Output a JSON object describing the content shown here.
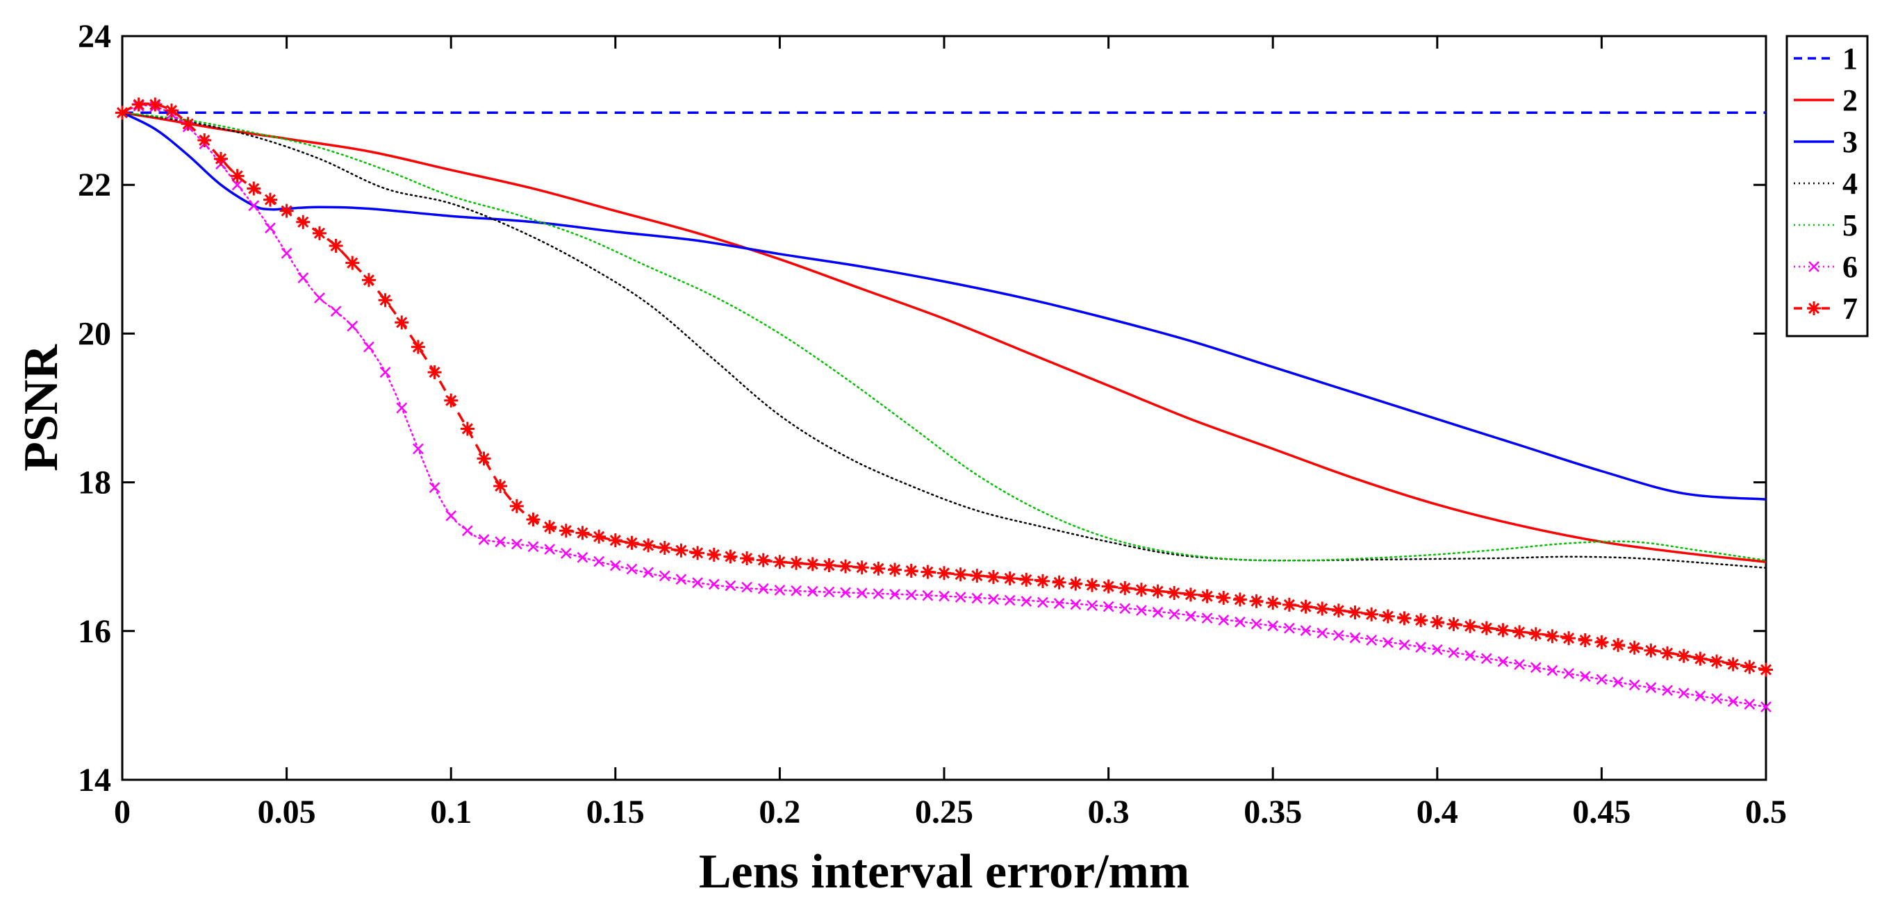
{
  "chart_data": {
    "type": "line",
    "title": "",
    "xlabel": "Lens interval error/mm",
    "ylabel": "PSNR",
    "xlim": [
      0,
      0.5
    ],
    "ylim": [
      14,
      24
    ],
    "xticks": [
      0,
      0.05,
      0.1,
      0.15,
      0.2,
      0.25,
      0.3,
      0.35,
      0.4,
      0.45,
      0.5
    ],
    "xtick_labels": [
      "0",
      "0.05",
      "0.1",
      "0.15",
      "0.2",
      "0.25",
      "0.3",
      "0.35",
      "0.4",
      "0.45",
      "0.5"
    ],
    "yticks": [
      14,
      16,
      18,
      20,
      22,
      24
    ],
    "ytick_labels": [
      "14",
      "16",
      "18",
      "20",
      "22",
      "24"
    ],
    "grid": false,
    "legend_position": "top-right (outside plot)",
    "series": [
      {
        "name": "1",
        "color": "#0000ff",
        "style": "dashed",
        "marker": "none",
        "x": [
          0,
          0.5
        ],
        "y": [
          22.97,
          22.97
        ]
      },
      {
        "name": "2",
        "color": "#ff0000",
        "style": "solid",
        "marker": "none",
        "x": [
          0,
          0.01,
          0.03,
          0.05,
          0.075,
          0.1,
          0.125,
          0.15,
          0.175,
          0.2,
          0.225,
          0.25,
          0.275,
          0.3,
          0.325,
          0.35,
          0.375,
          0.4,
          0.425,
          0.45,
          0.475,
          0.5
        ],
        "y": [
          22.97,
          22.9,
          22.75,
          22.62,
          22.45,
          22.2,
          21.95,
          21.65,
          21.35,
          21.0,
          20.6,
          20.2,
          19.75,
          19.3,
          18.85,
          18.45,
          18.05,
          17.7,
          17.42,
          17.2,
          17.05,
          16.93
        ]
      },
      {
        "name": "3",
        "color": "#0000ff",
        "style": "solid",
        "marker": "none",
        "x": [
          0,
          0.01,
          0.02,
          0.03,
          0.04,
          0.045,
          0.05,
          0.06,
          0.075,
          0.1,
          0.125,
          0.15,
          0.175,
          0.2,
          0.225,
          0.25,
          0.275,
          0.3,
          0.325,
          0.35,
          0.375,
          0.4,
          0.425,
          0.45,
          0.475,
          0.5
        ],
        "y": [
          22.97,
          22.75,
          22.4,
          22.0,
          21.72,
          21.67,
          21.68,
          21.7,
          21.68,
          21.58,
          21.5,
          21.37,
          21.25,
          21.07,
          20.9,
          20.7,
          20.47,
          20.2,
          19.9,
          19.55,
          19.2,
          18.85,
          18.5,
          18.15,
          17.85,
          17.77
        ]
      },
      {
        "name": "4",
        "color": "#000000",
        "style": "dotted",
        "marker": "none",
        "x": [
          0,
          0.02,
          0.04,
          0.06,
          0.08,
          0.1,
          0.12,
          0.14,
          0.16,
          0.18,
          0.2,
          0.22,
          0.24,
          0.26,
          0.28,
          0.3,
          0.32,
          0.34,
          0.36,
          0.38,
          0.4,
          0.42,
          0.44,
          0.46,
          0.48,
          0.5
        ],
        "y": [
          22.97,
          22.85,
          22.65,
          22.35,
          21.95,
          21.75,
          21.4,
          20.95,
          20.4,
          19.65,
          18.9,
          18.35,
          17.95,
          17.62,
          17.4,
          17.2,
          17.03,
          16.96,
          16.95,
          16.96,
          16.97,
          16.98,
          17.0,
          16.98,
          16.92,
          16.85
        ]
      },
      {
        "name": "5",
        "color": "#00c000",
        "style": "dotted",
        "marker": "none",
        "x": [
          0,
          0.02,
          0.04,
          0.06,
          0.08,
          0.1,
          0.12,
          0.14,
          0.16,
          0.18,
          0.2,
          0.22,
          0.24,
          0.26,
          0.28,
          0.3,
          0.32,
          0.34,
          0.36,
          0.38,
          0.4,
          0.42,
          0.44,
          0.46,
          0.48,
          0.5
        ],
        "y": [
          22.97,
          22.87,
          22.7,
          22.5,
          22.2,
          21.85,
          21.6,
          21.3,
          20.9,
          20.5,
          20.0,
          19.4,
          18.75,
          18.1,
          17.6,
          17.25,
          17.05,
          16.96,
          16.95,
          16.98,
          17.03,
          17.1,
          17.18,
          17.2,
          17.08,
          16.95
        ]
      },
      {
        "name": "6",
        "color": "#ff00ff",
        "style": "dotted",
        "marker": "x",
        "x": [
          0,
          0.005,
          0.01,
          0.015,
          0.02,
          0.025,
          0.03,
          0.035,
          0.04,
          0.045,
          0.05,
          0.055,
          0.06,
          0.065,
          0.07,
          0.075,
          0.08,
          0.085,
          0.09,
          0.095,
          0.1,
          0.105,
          0.11,
          0.12,
          0.13,
          0.15,
          0.175,
          0.2,
          0.25,
          0.3,
          0.35,
          0.4,
          0.45,
          0.5
        ],
        "y": [
          22.97,
          23.06,
          23.05,
          22.95,
          22.78,
          22.55,
          22.28,
          22.0,
          21.72,
          21.42,
          21.08,
          20.75,
          20.48,
          20.3,
          20.1,
          19.82,
          19.48,
          19.0,
          18.45,
          17.93,
          17.55,
          17.35,
          17.23,
          17.17,
          17.1,
          16.88,
          16.65,
          16.55,
          16.47,
          16.33,
          16.07,
          15.75,
          15.35,
          14.98
        ]
      },
      {
        "name": "7",
        "color": "#ff0000",
        "style": "dashed",
        "marker": "*",
        "x": [
          0,
          0.005,
          0.01,
          0.015,
          0.02,
          0.025,
          0.03,
          0.035,
          0.04,
          0.045,
          0.05,
          0.055,
          0.06,
          0.065,
          0.07,
          0.075,
          0.08,
          0.085,
          0.09,
          0.095,
          0.1,
          0.105,
          0.11,
          0.115,
          0.12,
          0.125,
          0.13,
          0.135,
          0.14,
          0.15,
          0.175,
          0.2,
          0.25,
          0.3,
          0.35,
          0.4,
          0.45,
          0.5
        ],
        "y": [
          22.97,
          23.08,
          23.08,
          23.0,
          22.82,
          22.6,
          22.35,
          22.12,
          21.95,
          21.8,
          21.65,
          21.5,
          21.35,
          21.18,
          20.95,
          20.72,
          20.45,
          20.15,
          19.82,
          19.48,
          19.1,
          18.72,
          18.32,
          17.95,
          17.68,
          17.5,
          17.4,
          17.35,
          17.32,
          17.22,
          17.05,
          16.93,
          16.78,
          16.6,
          16.38,
          16.12,
          15.85,
          15.48
        ]
      }
    ]
  }
}
